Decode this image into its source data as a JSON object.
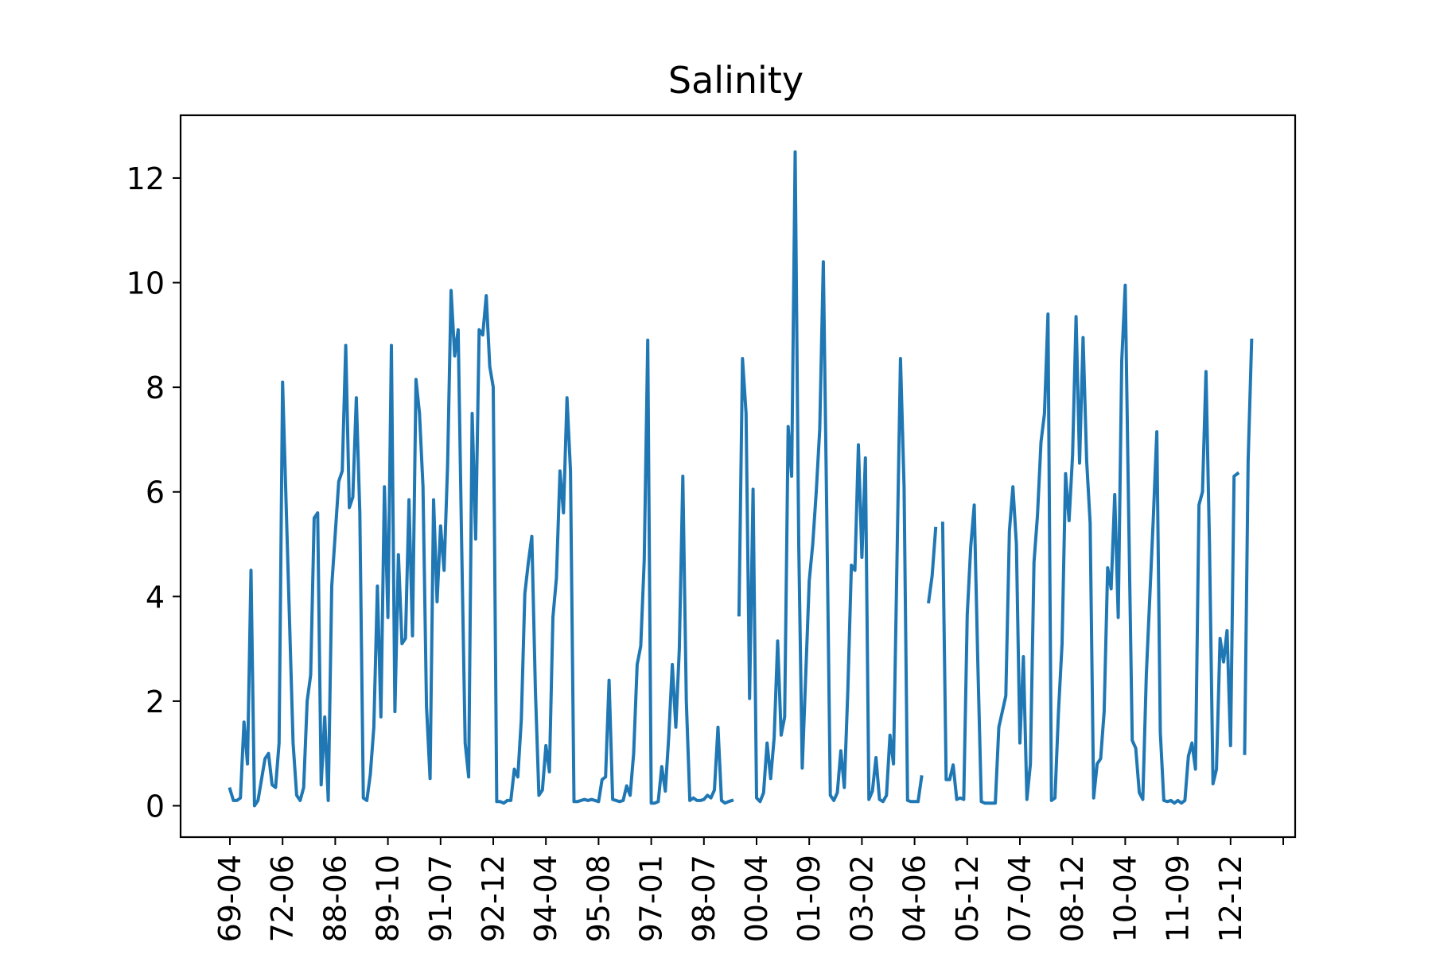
{
  "chart_data": {
    "type": "line",
    "title": "Salinity",
    "xlabel": "",
    "ylabel": "",
    "ylim": [
      -0.6,
      13.2
    ],
    "y_ticks": [
      0,
      2,
      4,
      6,
      8,
      10,
      12
    ],
    "x_tick_labels": [
      "1969-04",
      "1972-06",
      "1988-06",
      "1989-10",
      "1991-07",
      "1992-12",
      "1994-04",
      "1995-08",
      "1997-01",
      "1998-07",
      "2000-04",
      "2001-09",
      "2003-02",
      "2004-06",
      "2005-12",
      "2007-04",
      "2008-12",
      "2010-04",
      "2011-09",
      "2012-12"
    ],
    "x_tick_labels_visible": [
      "69-04",
      "72-06",
      "88-06",
      "89-10",
      "91-07",
      "92-12",
      "94-04",
      "95-08",
      "97-01",
      "98-07",
      "00-04",
      "01-09",
      "03-02",
      "04-06",
      "05-12",
      "07-04",
      "08-12",
      "10-04",
      "11-09",
      "12-12"
    ],
    "grid": false,
    "legend": "none",
    "series": [
      {
        "color": "#1f77b4",
        "values": [
          0.32,
          0.1,
          0.1,
          0.15,
          1.6,
          0.8,
          4.5,
          0.0,
          0.1,
          0.5,
          0.9,
          1.0,
          0.4,
          0.35,
          1.2,
          8.1,
          5.8,
          3.5,
          1.2,
          0.2,
          0.1,
          0.35,
          2.0,
          2.5,
          5.5,
          5.6,
          0.4,
          1.7,
          0.1,
          4.2,
          5.2,
          6.2,
          6.4,
          8.8,
          5.7,
          5.9,
          7.8,
          5.6,
          0.15,
          0.1,
          0.6,
          1.5,
          4.2,
          1.7,
          6.1,
          3.6,
          8.8,
          1.8,
          4.8,
          3.1,
          3.2,
          5.85,
          3.25,
          8.15,
          7.5,
          6.1,
          1.9,
          0.52,
          5.85,
          3.9,
          5.35,
          4.5,
          6.5,
          9.85,
          8.6,
          9.1,
          5.0,
          1.2,
          0.55,
          7.5,
          5.1,
          9.1,
          9.0,
          9.75,
          8.4,
          8.0,
          0.08,
          0.08,
          0.05,
          0.1,
          0.1,
          0.7,
          0.55,
          1.65,
          4.05,
          4.65,
          5.15,
          2.2,
          0.2,
          0.3,
          1.15,
          0.65,
          3.6,
          4.35,
          6.4,
          5.6,
          7.8,
          6.4,
          0.08,
          0.08,
          0.1,
          0.12,
          0.1,
          0.12,
          0.1,
          0.08,
          0.5,
          0.55,
          2.4,
          0.12,
          0.1,
          0.08,
          0.1,
          0.38,
          0.2,
          1.0,
          2.7,
          3.05,
          4.7,
          8.9,
          0.05,
          0.05,
          0.08,
          0.75,
          0.28,
          1.35,
          2.7,
          1.5,
          3.0,
          6.3,
          2.0,
          0.1,
          0.15,
          0.1,
          0.1,
          0.12,
          0.2,
          0.15,
          0.3,
          1.5,
          0.1,
          0.05,
          0.08,
          0.1,
          null,
          3.65,
          8.55,
          7.5,
          2.05,
          6.05,
          0.15,
          0.08,
          0.25,
          1.2,
          0.52,
          1.3,
          3.15,
          1.35,
          1.7,
          7.25,
          6.3,
          12.5,
          5.0,
          0.72,
          2.5,
          4.3,
          5.0,
          6.0,
          7.2,
          10.4,
          5.5,
          0.2,
          0.1,
          0.25,
          1.05,
          0.35,
          2.2,
          4.6,
          4.5,
          6.9,
          4.75,
          6.65,
          0.12,
          0.28,
          0.92,
          0.12,
          0.08,
          0.2,
          1.35,
          0.8,
          4.7,
          8.55,
          6.1,
          0.1,
          0.08,
          0.08,
          0.08,
          0.55,
          null,
          3.9,
          4.4,
          5.3,
          null,
          5.4,
          0.5,
          0.5,
          0.78,
          0.12,
          0.15,
          0.12,
          3.65,
          4.95,
          5.75,
          2.8,
          0.08,
          0.05,
          0.05,
          0.05,
          0.05,
          1.5,
          1.8,
          2.1,
          5.25,
          6.1,
          5.0,
          1.2,
          2.85,
          0.12,
          0.8,
          4.65,
          5.55,
          6.95,
          7.5,
          9.4,
          0.1,
          0.15,
          1.8,
          3.1,
          6.35,
          5.45,
          6.7,
          9.35,
          6.55,
          8.95,
          6.6,
          5.4,
          0.15,
          0.8,
          0.9,
          1.8,
          4.55,
          4.15,
          5.95,
          3.6,
          8.5,
          9.95,
          5.5,
          1.25,
          1.1,
          0.25,
          0.12,
          2.5,
          4.0,
          5.5,
          7.15,
          1.4,
          0.1,
          0.08,
          0.1,
          0.05,
          0.1,
          0.05,
          0.1,
          0.95,
          1.2,
          0.7,
          5.75,
          6.0,
          8.3,
          5.0,
          0.42,
          0.7,
          3.2,
          2.75,
          3.35,
          1.15,
          6.3,
          6.35,
          null,
          1.0,
          6.6,
          8.9
        ]
      }
    ]
  }
}
